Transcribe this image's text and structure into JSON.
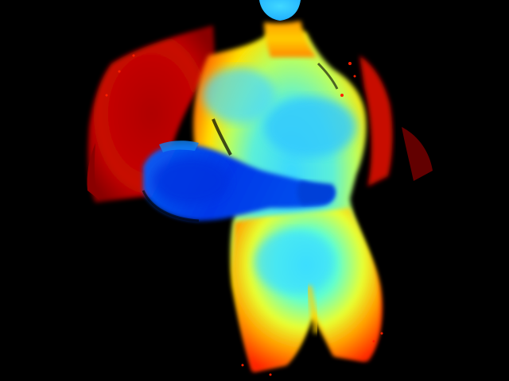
{
  "image": {
    "kind": "depth-map",
    "colormap": "jet",
    "background": "#000000",
    "subject": "person-with-arms-crossed",
    "palette": {
      "near": "#0030e0",
      "mid_near": "#00c8ff",
      "mid": "#7cffa0",
      "mid_far": "#ffd200",
      "far": "#ff3a00",
      "farthest": "#a80000"
    }
  }
}
